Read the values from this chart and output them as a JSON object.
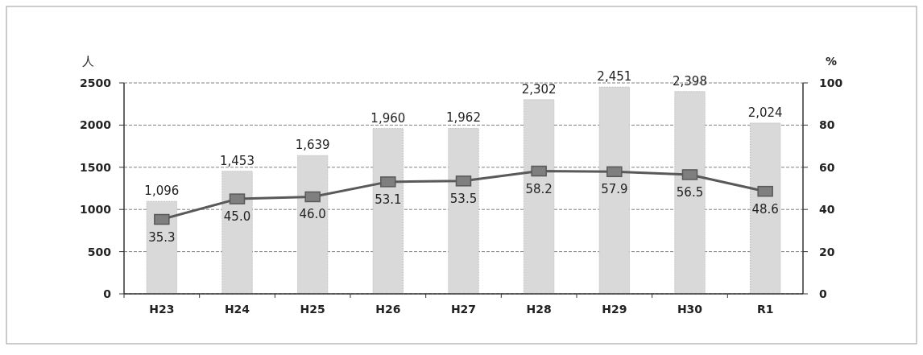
{
  "chart_data": {
    "type": "bar",
    "ylabel": "人",
    "y2label": "%",
    "categories": [
      "H23",
      "H24",
      "H25",
      "H26",
      "H27",
      "H28",
      "H29",
      "H30",
      "R1"
    ],
    "ylim": [
      0,
      2500
    ],
    "yticks": [
      0,
      500,
      1000,
      1500,
      2000,
      2500
    ],
    "y2lim": [
      0,
      100
    ],
    "y2ticks": [
      0,
      20,
      40,
      60,
      80,
      100
    ],
    "grid": "y",
    "series": [
      {
        "color": "#d9d9d9",
        "values": [
          1096,
          1453,
          1639,
          1960,
          1962,
          2302,
          2451,
          2398,
          2024
        ],
        "value_labels": [
          "1,096",
          "1,453",
          "1,639",
          "1,960",
          "1,962",
          "2,302",
          "2,451",
          "2,398",
          "2,024"
        ]
      },
      {
        "type": "line",
        "axis": "y2",
        "color": "#595959",
        "marker": "square",
        "values": [
          35.3,
          45.0,
          46.0,
          53.1,
          53.5,
          58.2,
          57.9,
          56.5,
          48.6
        ],
        "value_labels": [
          "35.3",
          "45.0",
          "46.0",
          "53.1",
          "53.5",
          "58.2",
          "57.9",
          "56.5",
          "48.6"
        ]
      }
    ]
  }
}
